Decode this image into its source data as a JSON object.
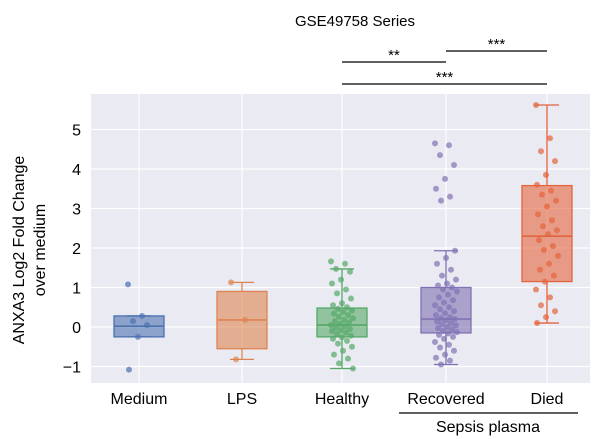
{
  "chart_data": {
    "type": "box",
    "title": "GSE49758 Series",
    "ylabel_line1": "ANXA3 Log2 Fold Change",
    "ylabel_line2": "over medium",
    "xlabel": "",
    "ylim": [
      -1.3,
      5.9
    ],
    "yticks": [
      "−1",
      "0",
      "1",
      "2",
      "3",
      "4",
      "5"
    ],
    "ytick_values": [
      -1,
      0,
      1,
      2,
      3,
      4,
      5
    ],
    "categories": [
      "Medium",
      "LPS",
      "Healthy",
      "Recovered",
      "Died"
    ],
    "group_label": "Sepsis plasma",
    "significance": [
      {
        "from": "Healthy",
        "to": "Recovered",
        "label": "**"
      },
      {
        "from": "Recovered",
        "to": "Died",
        "label": "***"
      },
      {
        "from": "Healthy",
        "to": "Died",
        "label": "***"
      }
    ],
    "series": [
      {
        "category": "Medium",
        "color": "#4c72b0",
        "q1": -0.25,
        "median": 0.02,
        "q3": 0.28,
        "whisker_low": -0.25,
        "whisker_high": 0.28,
        "points": [
          1.08,
          0.28,
          0.15,
          0.05,
          -0.25,
          -1.08
        ]
      },
      {
        "category": "LPS",
        "color": "#dd8452",
        "q1": -0.55,
        "median": 0.18,
        "q3": 0.9,
        "whisker_low": -0.82,
        "whisker_high": 1.13,
        "points": [
          1.13,
          0.18,
          -0.82
        ]
      },
      {
        "category": "Healthy",
        "color": "#55a868",
        "q1": -0.25,
        "median": 0.05,
        "q3": 0.48,
        "whisker_low": -1.05,
        "whisker_high": 1.47,
        "points": [
          1.66,
          1.6,
          1.47,
          1.4,
          1.2,
          1.1,
          0.95,
          0.85,
          0.72,
          0.6,
          0.55,
          0.5,
          0.46,
          0.42,
          0.38,
          0.34,
          0.3,
          0.26,
          0.22,
          0.18,
          0.15,
          0.12,
          0.08,
          0.05,
          0.02,
          -0.02,
          -0.05,
          -0.08,
          -0.1,
          -0.14,
          -0.18,
          -0.22,
          -0.26,
          -0.3,
          -0.35,
          -0.42,
          -0.5,
          -0.6,
          -0.7,
          -0.8,
          -0.92,
          -1.05
        ]
      },
      {
        "category": "Recovered",
        "color": "#8172b3",
        "q1": -0.15,
        "median": 0.2,
        "q3": 1.0,
        "whisker_low": -0.95,
        "whisker_high": 1.93,
        "points": [
          4.65,
          4.6,
          4.35,
          4.1,
          3.75,
          3.5,
          3.3,
          3.2,
          1.93,
          1.75,
          1.6,
          1.45,
          1.3,
          1.2,
          1.1,
          1.05,
          1.0,
          0.95,
          0.9,
          0.82,
          0.75,
          0.68,
          0.62,
          0.55,
          0.5,
          0.45,
          0.4,
          0.35,
          0.3,
          0.25,
          0.22,
          0.2,
          0.17,
          0.14,
          0.1,
          0.07,
          0.04,
          0.0,
          -0.03,
          -0.06,
          -0.1,
          -0.13,
          -0.16,
          -0.2,
          -0.25,
          -0.3,
          -0.38,
          -0.45,
          -0.52,
          -0.6,
          -0.7,
          -0.78,
          -0.85,
          -0.95
        ]
      },
      {
        "category": "Died",
        "color": "#e4643c",
        "q1": 1.15,
        "median": 2.3,
        "q3": 3.58,
        "whisker_low": 0.1,
        "whisker_high": 5.62,
        "points": [
          5.62,
          4.78,
          4.45,
          4.2,
          3.85,
          3.6,
          3.45,
          3.35,
          3.2,
          3.05,
          2.85,
          2.7,
          2.55,
          2.45,
          2.35,
          2.2,
          2.05,
          1.95,
          1.8,
          1.6,
          1.45,
          1.3,
          1.15,
          0.95,
          0.75,
          0.55,
          0.4,
          0.25,
          0.1
        ]
      }
    ]
  }
}
